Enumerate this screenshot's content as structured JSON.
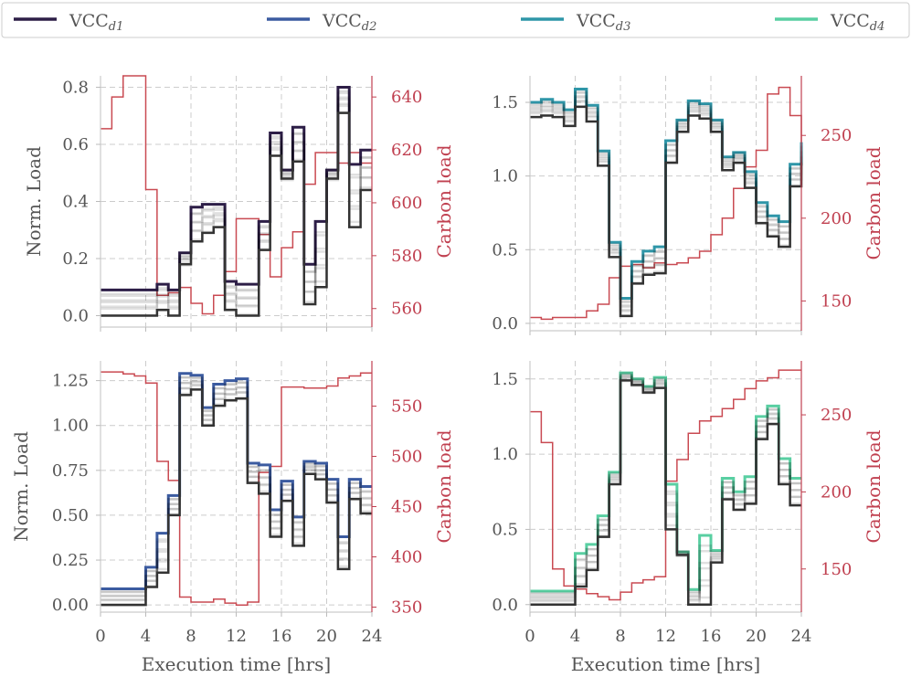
{
  "legend": [
    {
      "name": "VCC",
      "sub": "d1",
      "color": "#2d1e47"
    },
    {
      "name": "VCC",
      "sub": "d2",
      "color": "#3b5ba0"
    },
    {
      "name": "VCC",
      "sub": "d3",
      "color": "#2f96a8"
    },
    {
      "name": "VCC",
      "sub": "d4",
      "color": "#59cfa2"
    }
  ],
  "colors": {
    "carbon": "#c94a52",
    "carbon_axis": "#c04050",
    "shadow": "#000000"
  },
  "chart_data": [
    {
      "type": "line",
      "drawstyle": "steps",
      "x": [
        0,
        1,
        2,
        3,
        4,
        5,
        6,
        7,
        8,
        9,
        10,
        11,
        12,
        13,
        14,
        15,
        16,
        17,
        18,
        19,
        20,
        21,
        22,
        23,
        24
      ],
      "xlim": [
        0,
        24
      ],
      "xticks": [
        "0",
        "4",
        "8",
        "12",
        "16",
        "20",
        "24"
      ],
      "ylabel": "Norm. Load",
      "ylim": [
        -0.04,
        0.84
      ],
      "yticks": [
        "0.0",
        "0.2",
        "0.4",
        "0.6",
        "0.8"
      ],
      "y2label": "Carbon load",
      "y2lim": [
        553,
        648
      ],
      "y2ticks": [
        "560",
        "580",
        "600",
        "620",
        "640"
      ],
      "series": [
        {
          "legend_index": 0,
          "values": [
            0.09,
            0.09,
            0.09,
            0.09,
            0.09,
            0.11,
            0.09,
            0.22,
            0.38,
            0.39,
            0.39,
            0.12,
            0.11,
            0.11,
            0.33,
            0.64,
            0.51,
            0.66,
            0.18,
            0.33,
            0.51,
            0.8,
            0.53,
            0.58,
            0.58
          ]
        },
        {
          "role": "baseline",
          "values": [
            0.0,
            0.0,
            0.0,
            0.0,
            0.0,
            0.02,
            0.0,
            0.18,
            0.26,
            0.29,
            0.31,
            0.02,
            0.0,
            0.0,
            0.23,
            0.56,
            0.48,
            0.54,
            0.04,
            0.1,
            0.48,
            0.71,
            0.31,
            0.44,
            0.44
          ]
        },
        {
          "role": "carbon",
          "values": [
            628,
            640,
            648,
            648,
            605,
            565,
            566,
            568,
            562,
            558,
            565,
            574,
            594,
            594,
            588,
            572,
            583,
            589,
            607,
            619,
            619,
            615,
            619,
            615,
            615
          ]
        }
      ],
      "shadow_spread": 0.06
    },
    {
      "type": "line",
      "drawstyle": "steps",
      "x": [
        0,
        1,
        2,
        3,
        4,
        5,
        6,
        7,
        8,
        9,
        10,
        11,
        12,
        13,
        14,
        15,
        16,
        17,
        18,
        19,
        20,
        21,
        22,
        23,
        24
      ],
      "xlim": [
        0,
        24
      ],
      "xticks": [
        "0",
        "4",
        "8",
        "12",
        "16",
        "20",
        "24"
      ],
      "ylim": [
        -0.05,
        1.68
      ],
      "yticks": [
        "0.0",
        "0.5",
        "1.0",
        "1.5"
      ],
      "y2label": "Carbon load",
      "y2lim": [
        132,
        286
      ],
      "y2ticks": [
        "150",
        "200",
        "250"
      ],
      "series": [
        {
          "legend_index": 2,
          "values": [
            1.5,
            1.52,
            1.5,
            1.45,
            1.59,
            1.48,
            1.17,
            0.55,
            0.17,
            0.42,
            0.49,
            0.52,
            1.24,
            1.38,
            1.51,
            1.49,
            1.38,
            1.13,
            1.16,
            1.03,
            0.82,
            0.73,
            0.69,
            1.08,
            1.23
          ]
        },
        {
          "role": "baseline",
          "values": [
            1.4,
            1.41,
            1.4,
            1.34,
            1.47,
            1.37,
            1.07,
            0.45,
            0.05,
            0.27,
            0.33,
            0.34,
            1.09,
            1.3,
            1.41,
            1.39,
            1.3,
            1.04,
            1.09,
            0.92,
            0.68,
            0.59,
            0.52,
            0.93,
            1.09
          ]
        },
        {
          "role": "carbon",
          "values": [
            140,
            139,
            140,
            140,
            140,
            144,
            148,
            164,
            171,
            172,
            170,
            173,
            172,
            173,
            176,
            180,
            190,
            200,
            218,
            231,
            241,
            275,
            279,
            262,
            223
          ]
        }
      ],
      "shadow_spread": 0.08
    },
    {
      "type": "line",
      "drawstyle": "steps",
      "x": [
        0,
        1,
        2,
        3,
        4,
        5,
        6,
        7,
        8,
        9,
        10,
        11,
        12,
        13,
        14,
        15,
        16,
        17,
        18,
        19,
        20,
        21,
        22,
        23,
        24
      ],
      "xlim": [
        0,
        24
      ],
      "xticks": [
        "0",
        "4",
        "8",
        "12",
        "16",
        "20",
        "24"
      ],
      "xlabel": "Execution time [hrs]",
      "ylabel": "Norm. Load",
      "ylim": [
        -0.04,
        1.36
      ],
      "yticks": [
        "0.00",
        "0.25",
        "0.50",
        "0.75",
        "1.00",
        "1.25"
      ],
      "y2label": "Carbon load",
      "y2lim": [
        345,
        595
      ],
      "y2ticks": [
        "350",
        "400",
        "450",
        "500",
        "550"
      ],
      "series": [
        {
          "legend_index": 1,
          "values": [
            0.09,
            0.09,
            0.09,
            0.09,
            0.21,
            0.4,
            0.61,
            1.29,
            1.28,
            1.1,
            1.23,
            1.25,
            1.26,
            0.79,
            0.78,
            0.53,
            0.69,
            0.49,
            0.8,
            0.79,
            0.7,
            0.38,
            0.7,
            0.66,
            0.66
          ]
        },
        {
          "role": "baseline",
          "values": [
            0.0,
            0.0,
            0.0,
            0.0,
            0.1,
            0.18,
            0.5,
            1.17,
            1.2,
            1.0,
            1.11,
            1.14,
            1.15,
            0.68,
            0.62,
            0.38,
            0.58,
            0.33,
            0.73,
            0.7,
            0.57,
            0.2,
            0.59,
            0.51,
            0.51
          ]
        },
        {
          "role": "carbon",
          "values": [
            584,
            584,
            582,
            580,
            573,
            495,
            476,
            360,
            355,
            355,
            358,
            354,
            352,
            355,
            484,
            490,
            569,
            569,
            568,
            568,
            570,
            578,
            580,
            583,
            583
          ]
        }
      ],
      "shadow_spread": 0.05
    },
    {
      "type": "line",
      "drawstyle": "steps",
      "x": [
        0,
        1,
        2,
        3,
        4,
        5,
        6,
        7,
        8,
        9,
        10,
        11,
        12,
        13,
        14,
        15,
        16,
        17,
        18,
        19,
        20,
        21,
        22,
        23,
        24
      ],
      "xlim": [
        0,
        24
      ],
      "xticks": [
        "0",
        "4",
        "8",
        "12",
        "16",
        "20",
        "24"
      ],
      "xlabel": "Execution time [hrs]",
      "ylim": [
        -0.05,
        1.62
      ],
      "yticks": [
        "0.0",
        "0.5",
        "1.0",
        "1.5"
      ],
      "y2label": "Carbon load",
      "y2lim": [
        122,
        285
      ],
      "y2ticks": [
        "150",
        "200",
        "250"
      ],
      "series": [
        {
          "legend_index": 3,
          "values": [
            0.09,
            0.09,
            0.09,
            0.09,
            0.34,
            0.4,
            0.59,
            0.88,
            1.54,
            1.5,
            1.45,
            1.51,
            0.8,
            0.35,
            0.1,
            0.46,
            0.36,
            0.84,
            0.75,
            0.85,
            1.25,
            1.32,
            0.97,
            0.84,
            0.84
          ]
        },
        {
          "role": "baseline",
          "values": [
            0.0,
            0.0,
            0.0,
            0.0,
            0.12,
            0.23,
            0.45,
            0.8,
            1.49,
            1.46,
            1.41,
            1.44,
            0.5,
            0.33,
            0.0,
            0.0,
            0.28,
            0.7,
            0.63,
            0.67,
            1.1,
            1.2,
            0.8,
            0.66,
            0.66
          ]
        },
        {
          "role": "carbon",
          "values": [
            252,
            232,
            150,
            139,
            137,
            134,
            132,
            130,
            135,
            141,
            143,
            145,
            207,
            221,
            238,
            246,
            249,
            254,
            260,
            267,
            272,
            274,
            279,
            279,
            279
          ]
        }
      ],
      "shadow_spread": 0.07
    }
  ]
}
